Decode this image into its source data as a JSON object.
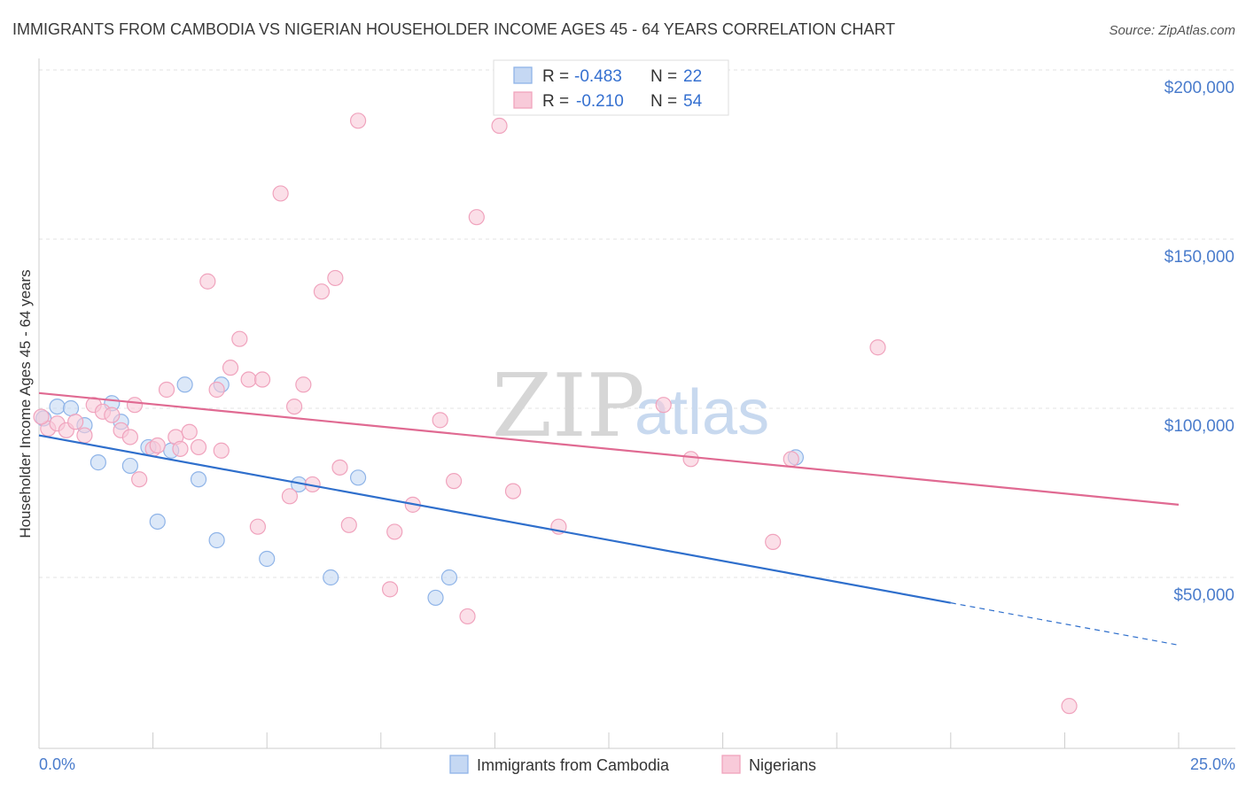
{
  "chart_data": {
    "type": "scatter",
    "title": "IMMIGRANTS FROM CAMBODIA VS NIGERIAN HOUSEHOLDER INCOME AGES 45 - 64 YEARS CORRELATION CHART",
    "source": "Source: ZipAtlas.com",
    "ylabel": "Householder Income Ages 45 - 64 years",
    "xlim": [
      0,
      25
    ],
    "ylim": [
      0,
      210000
    ],
    "y_ticks": [
      {
        "value": 50000,
        "label": "$50,000"
      },
      {
        "value": 100000,
        "label": "$100,000"
      },
      {
        "value": 150000,
        "label": "$150,000"
      },
      {
        "value": 200000,
        "label": "$200,000"
      }
    ],
    "x_tick_labels": {
      "min": "0.0%",
      "max": "25.0%"
    },
    "watermark": {
      "zip": "ZIP",
      "atlas": "atlas"
    },
    "legend": [
      {
        "r_label": "R =",
        "r_value": "-0.483",
        "n_label": "N =",
        "n_value": "22"
      },
      {
        "r_label": "R =",
        "r_value": "-0.210",
        "n_label": "N =",
        "n_value": "54"
      }
    ],
    "series": [
      {
        "name": "Immigrants from Cambodia",
        "color": "#8fb4e8",
        "fill": "#c5d8f3",
        "line_color": "#2f6fcc",
        "trend": {
          "x0": 0,
          "y0": 92000,
          "x1": 20,
          "y1": 42500,
          "dash_to_x": 25,
          "dash_to_y": 30000
        },
        "points": [
          [
            0.1,
            97000
          ],
          [
            0.4,
            100500
          ],
          [
            0.7,
            100000
          ],
          [
            1.0,
            95000
          ],
          [
            1.3,
            84000
          ],
          [
            1.6,
            101500
          ],
          [
            1.8,
            96000
          ],
          [
            2.0,
            83000
          ],
          [
            2.4,
            88500
          ],
          [
            2.6,
            66500
          ],
          [
            2.9,
            87500
          ],
          [
            3.2,
            107000
          ],
          [
            3.5,
            79000
          ],
          [
            3.9,
            61000
          ],
          [
            4.0,
            107000
          ],
          [
            5.0,
            55500
          ],
          [
            5.7,
            77500
          ],
          [
            6.4,
            50000
          ],
          [
            7.0,
            79500
          ],
          [
            8.7,
            44000
          ],
          [
            9.0,
            50000
          ],
          [
            16.6,
            85500
          ]
        ]
      },
      {
        "name": "Nigerians",
        "color": "#f0a3bd",
        "fill": "#f8cad9",
        "line_color": "#e06a92",
        "trend": {
          "x0": 0,
          "y0": 104500,
          "x1": 25,
          "y1": 71500
        },
        "points": [
          [
            0.2,
            94000
          ],
          [
            0.4,
            95500
          ],
          [
            0.6,
            93500
          ],
          [
            0.8,
            96000
          ],
          [
            1.0,
            92000
          ],
          [
            1.2,
            101000
          ],
          [
            1.4,
            99000
          ],
          [
            1.6,
            98000
          ],
          [
            1.8,
            93500
          ],
          [
            2.0,
            91500
          ],
          [
            2.1,
            101000
          ],
          [
            2.2,
            79000
          ],
          [
            2.5,
            88000
          ],
          [
            2.6,
            89000
          ],
          [
            2.8,
            105500
          ],
          [
            3.0,
            91500
          ],
          [
            3.1,
            88000
          ],
          [
            3.3,
            93000
          ],
          [
            3.5,
            88500
          ],
          [
            3.7,
            137500
          ],
          [
            3.9,
            105500
          ],
          [
            4.0,
            87500
          ],
          [
            4.2,
            112000
          ],
          [
            4.4,
            120500
          ],
          [
            4.6,
            108500
          ],
          [
            4.8,
            65000
          ],
          [
            4.9,
            108500
          ],
          [
            5.3,
            163500
          ],
          [
            5.5,
            74000
          ],
          [
            5.6,
            100500
          ],
          [
            5.8,
            107000
          ],
          [
            6.0,
            77500
          ],
          [
            6.2,
            134500
          ],
          [
            6.5,
            138500
          ],
          [
            6.6,
            82500
          ],
          [
            6.8,
            65500
          ],
          [
            7.0,
            185000
          ],
          [
            7.7,
            46500
          ],
          [
            7.8,
            63500
          ],
          [
            8.2,
            71500
          ],
          [
            8.8,
            96500
          ],
          [
            9.1,
            78500
          ],
          [
            9.4,
            38500
          ],
          [
            9.6,
            156500
          ],
          [
            10.1,
            183500
          ],
          [
            10.4,
            75500
          ],
          [
            11.4,
            65000
          ],
          [
            13.7,
            101000
          ],
          [
            14.3,
            85000
          ],
          [
            16.1,
            60500
          ],
          [
            16.5,
            85000
          ],
          [
            18.4,
            118000
          ],
          [
            22.6,
            12000
          ],
          [
            0.05,
            97500
          ]
        ]
      }
    ]
  }
}
